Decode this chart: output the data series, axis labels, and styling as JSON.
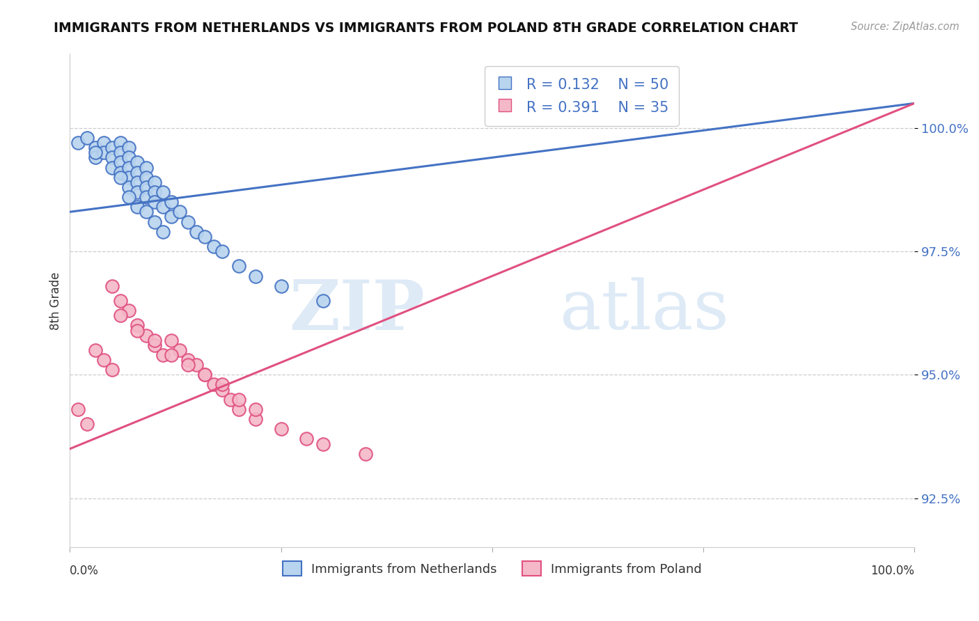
{
  "title": "IMMIGRANTS FROM NETHERLANDS VS IMMIGRANTS FROM POLAND 8TH GRADE CORRELATION CHART",
  "source": "Source: ZipAtlas.com",
  "ylabel": "8th Grade",
  "xlim": [
    0,
    100
  ],
  "ylim": [
    91.5,
    101.5
  ],
  "yticks": [
    92.5,
    95.0,
    97.5,
    100.0
  ],
  "ytick_labels": [
    "92.5%",
    "95.0%",
    "97.5%",
    "100.0%"
  ],
  "blue_R": 0.132,
  "blue_N": 50,
  "pink_R": 0.391,
  "pink_N": 35,
  "blue_color": "#b8d4ee",
  "blue_line_color": "#4472c4",
  "pink_color": "#f4b8c8",
  "pink_line_color": "#e05080",
  "legend_label_blue": "Immigrants from Netherlands",
  "legend_label_pink": "Immigrants from Poland",
  "blue_x": [
    1,
    2,
    3,
    3,
    4,
    4,
    5,
    5,
    5,
    6,
    6,
    6,
    6,
    7,
    7,
    7,
    7,
    7,
    8,
    8,
    8,
    8,
    9,
    9,
    9,
    9,
    10,
    10,
    10,
    11,
    11,
    12,
    12,
    13,
    14,
    15,
    16,
    17,
    18,
    20,
    22,
    25,
    30,
    6,
    7,
    8,
    9,
    10,
    11,
    3
  ],
  "blue_y": [
    99.7,
    99.8,
    99.6,
    99.4,
    99.7,
    99.5,
    99.6,
    99.4,
    99.2,
    99.7,
    99.5,
    99.3,
    99.1,
    99.6,
    99.4,
    99.2,
    99.0,
    98.8,
    99.3,
    99.1,
    98.9,
    98.7,
    99.2,
    99.0,
    98.8,
    98.6,
    98.9,
    98.7,
    98.5,
    98.7,
    98.4,
    98.5,
    98.2,
    98.3,
    98.1,
    97.9,
    97.8,
    97.6,
    97.5,
    97.2,
    97.0,
    96.8,
    96.5,
    99.0,
    98.6,
    98.4,
    98.3,
    98.1,
    97.9,
    99.5
  ],
  "pink_x": [
    1,
    2,
    3,
    4,
    5,
    5,
    6,
    7,
    8,
    9,
    10,
    11,
    12,
    13,
    14,
    15,
    16,
    17,
    18,
    19,
    20,
    22,
    25,
    28,
    30,
    35,
    6,
    8,
    10,
    12,
    14,
    16,
    18,
    20,
    22
  ],
  "pink_y": [
    94.3,
    94.0,
    95.5,
    95.3,
    96.8,
    95.1,
    96.5,
    96.3,
    96.0,
    95.8,
    95.6,
    95.4,
    95.7,
    95.5,
    95.3,
    95.2,
    95.0,
    94.8,
    94.7,
    94.5,
    94.3,
    94.1,
    93.9,
    93.7,
    93.6,
    93.4,
    96.2,
    95.9,
    95.7,
    95.4,
    95.2,
    95.0,
    94.8,
    94.5,
    94.3
  ],
  "blue_line_x0": 0,
  "blue_line_y0": 98.3,
  "blue_line_x1": 100,
  "blue_line_y1": 100.5,
  "pink_line_x0": 0,
  "pink_line_y0": 93.5,
  "pink_line_x1": 100,
  "pink_line_y1": 100.5
}
